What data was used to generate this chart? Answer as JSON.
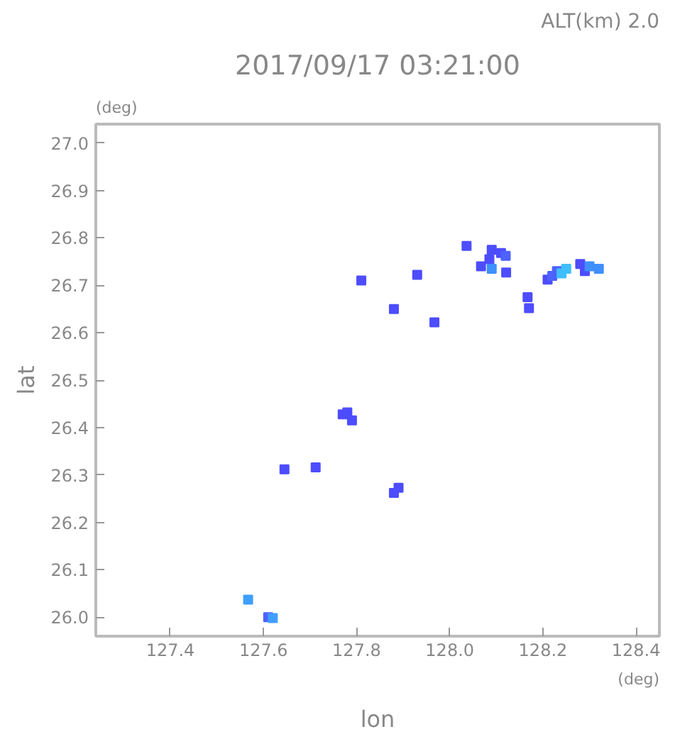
{
  "chart_data": {
    "type": "scatter",
    "title": "2017/09/17 03:21:00",
    "xlabel": "lon",
    "ylabel": "lat",
    "annotations": [
      "ALT(km) 2.0",
      "(deg)",
      "(deg)"
    ],
    "marker": "square",
    "grid": false,
    "xlim": [
      127.24,
      128.45
    ],
    "ylim": [
      25.96,
      27.04
    ],
    "xticks": [
      127.4,
      127.6,
      127.8,
      {
        "value": 128.0,
        "label": "128.0"
      },
      128.2,
      128.4
    ],
    "yticks": [
      {
        "value": 26.0,
        "label": "26.0"
      },
      26.1,
      26.2,
      26.3,
      26.4,
      26.5,
      26.6,
      26.7,
      26.8,
      26.9,
      {
        "value": 27.0,
        "label": "27.0"
      }
    ],
    "x": [
      128.09,
      128.11,
      128.12,
      128.085,
      128.09,
      128.067,
      128.121,
      128.036,
      128.21,
      128.22,
      128.23,
      128.24,
      128.25,
      128.28,
      128.29,
      128.3,
      128.32,
      127.81,
      127.88,
      128.167,
      128.17,
      127.93,
      127.967,
      127.77,
      127.78,
      127.79,
      127.645,
      127.712,
      127.89,
      127.88,
      127.567,
      127.61,
      127.62
    ],
    "values": [
      26.775,
      26.768,
      26.762,
      26.755,
      26.735,
      26.74,
      26.727,
      26.783,
      26.712,
      26.72,
      26.73,
      26.725,
      26.735,
      26.745,
      26.73,
      26.74,
      26.735,
      26.71,
      26.65,
      26.675,
      26.652,
      26.722,
      26.622,
      26.428,
      26.432,
      26.415,
      26.312,
      26.316,
      26.273,
      26.262,
      26.037,
      26.0,
      25.998
    ],
    "colors": [
      "#4d4dff",
      "#4d4dff",
      "#4d62ff",
      "#4d4dff",
      "#3f8fff",
      "#4d4dff",
      "#4d4dff",
      "#4d4dff",
      "#4d4dff",
      "#4d62ff",
      "#4d62ff",
      "#3fbfff",
      "#3fbfff",
      "#4d4dff",
      "#4d4dff",
      "#3f8fff",
      "#3f8fff",
      "#4d4dff",
      "#4d4dff",
      "#4d4dff",
      "#4d4dff",
      "#4d4dff",
      "#4d4dff",
      "#4d4dff",
      "#4d4dff",
      "#4d4dff",
      "#4d4dff",
      "#4d4dff",
      "#4d4dff",
      "#4d4dff",
      "#3f9fff",
      "#4d62ff",
      "#3f9fff"
    ]
  }
}
